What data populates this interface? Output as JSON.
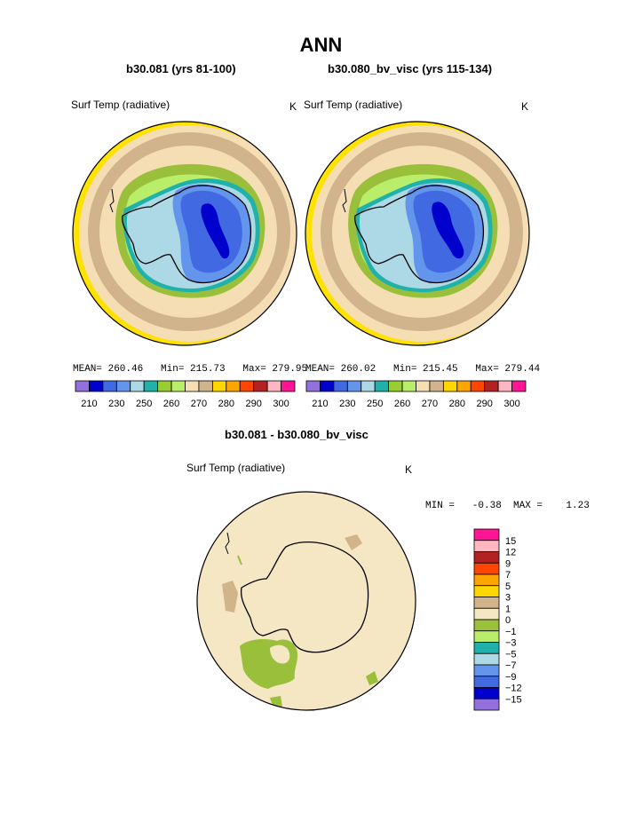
{
  "page_title": "ANN",
  "top_left": {
    "case_title": "b30.081 (yrs 81-100)",
    "field_label": "Surf Temp (radiative)",
    "units": "K",
    "stats": "MEAN= 260.46   Min= 215.73   Max= 279.95"
  },
  "top_right": {
    "case_title": "b30.080_bv_visc (yrs 115-134)",
    "field_label": "Surf Temp (radiative)",
    "units": "K",
    "stats": "MEAN= 260.02   Min= 215.45   Max= 279.44"
  },
  "abs_colorbar": {
    "colors": [
      "#9370DB",
      "#0000CD",
      "#4169E1",
      "#6495ED",
      "#ADD8E6",
      "#20B2AA",
      "#9ACD32",
      "#B8EE6A",
      "#F5DEB3",
      "#D2B48C",
      "#FFD700",
      "#FFA500",
      "#FF4500",
      "#B22222",
      "#FFB6C1",
      "#FF1493"
    ],
    "tick_labels": [
      "210",
      "230",
      "250",
      "260",
      "270",
      "280",
      "290",
      "300"
    ]
  },
  "difference": {
    "title": "b30.081 - b30.080_bv_visc",
    "field_label": "Surf Temp (radiative)",
    "units": "K",
    "minmax": "MIN =   -0.38  MAX =    1.23",
    "colorbar": {
      "colors": [
        "#FF1493",
        "#FFB6C1",
        "#B22222",
        "#FF4500",
        "#FFA500",
        "#FFD700",
        "#D2B48C",
        "#F5E6C4",
        "#9ABF3A",
        "#B8EE6A",
        "#20B2AA",
        "#ADD8E6",
        "#6495ED",
        "#4169E1",
        "#0000CD",
        "#9370DB"
      ],
      "tick_labels": [
        "15",
        "12",
        "9",
        "7",
        "5",
        "3",
        "1",
        "0",
        "−1",
        "−3",
        "−5",
        "−7",
        "−9",
        "−12",
        "−15"
      ]
    }
  },
  "colors": {
    "ocean_far": "#FFE200",
    "sea_ice_edge": "#D2B48C",
    "diff_background": "#F5E6C4",
    "diff_negative": "#9ABF3A",
    "diff_positive": "#D2B48C"
  }
}
